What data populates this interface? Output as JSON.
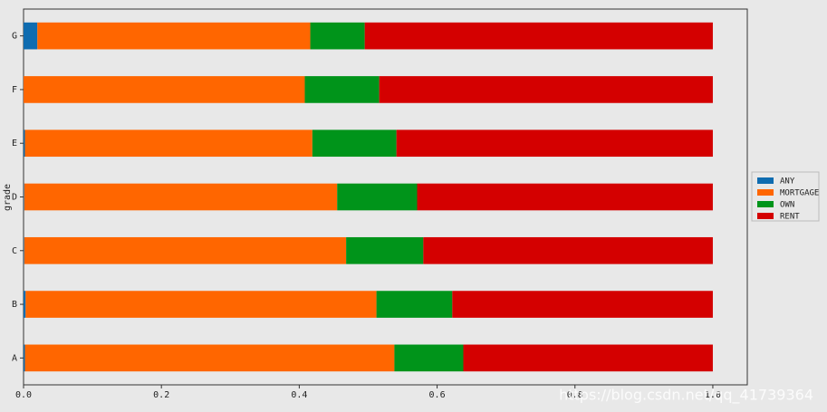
{
  "chart_data": {
    "type": "barh_stacked",
    "ylabel": "grade",
    "categories": [
      "A",
      "B",
      "C",
      "D",
      "E",
      "F",
      "G"
    ],
    "series": [
      {
        "name": "ANY",
        "color": "#0f6cb0",
        "values": [
          0.002,
          0.003,
          0.001,
          0.001,
          0.002,
          0.0,
          0.02
        ]
      },
      {
        "name": "MORTGAGE",
        "color": "#ff6600",
        "values": [
          0.536,
          0.509,
          0.467,
          0.454,
          0.417,
          0.408,
          0.396
        ]
      },
      {
        "name": "OWN",
        "color": "#00941a",
        "values": [
          0.1,
          0.11,
          0.112,
          0.116,
          0.122,
          0.108,
          0.079
        ]
      },
      {
        "name": "RENT",
        "color": "#d40000",
        "values": [
          0.362,
          0.378,
          0.42,
          0.429,
          0.459,
          0.484,
          0.505
        ]
      }
    ],
    "xlim": [
      0,
      1.05
    ],
    "xticks": [
      {
        "value": 0,
        "label": "0.0"
      },
      0.2,
      0.4,
      0.6,
      0.8,
      {
        "value": 1,
        "label": "1.0"
      }
    ],
    "legend": "right",
    "watermark": "https://blog.csdn.net/qq_41739364"
  }
}
